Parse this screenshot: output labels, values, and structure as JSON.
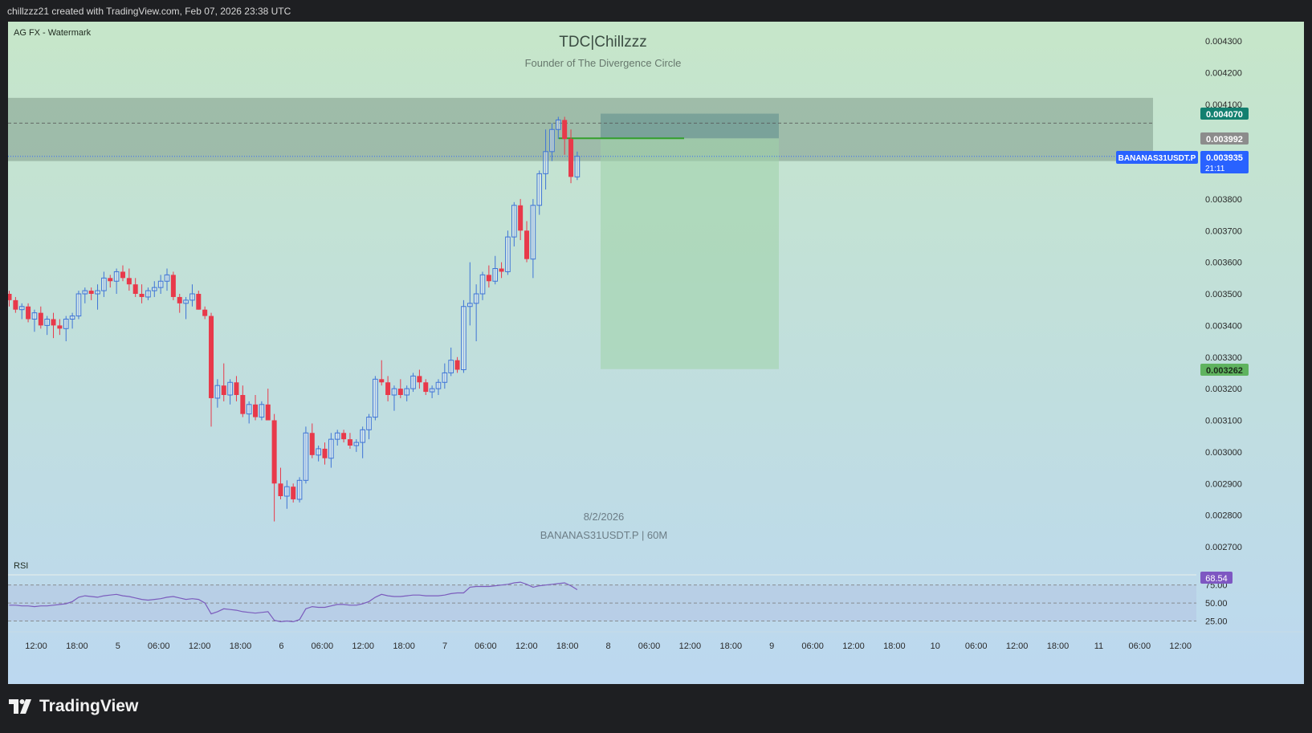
{
  "header": {
    "created_text": "chillzzz21 created with TradingView.com, Feb 07, 2026 23:38 UTC"
  },
  "watermark_label": "AG FX - Watermark",
  "title": "TDC|Chillzzz",
  "subtitle": "Founder of The Divergence Circle",
  "date_label": "8/2/2026",
  "symbol_label": "BANANAS31USDT.P | 60M",
  "footer_brand": "TradingView",
  "colors": {
    "up": "#3e74d6",
    "down": "#e8394a",
    "bg_top": "#c6e6c9",
    "bg_bottom": "#bcd8f0",
    "zone": "#7f9a8a",
    "stop": "#5d8c8c",
    "target": "#9fd2a8",
    "rsi_line": "#7b5cbd"
  },
  "price_tags": {
    "stop": "0.004070",
    "entry": "0.003992",
    "current_symbol": "BANANAS31USDT.P",
    "current": "0.003935",
    "countdown": "21:11",
    "target": "0.003262",
    "rsi": "68.54"
  },
  "price_axis": {
    "labels": [
      "0.004300",
      "0.004200",
      "0.004100",
      "0.003800",
      "0.003700",
      "0.003600",
      "0.003500",
      "0.003400",
      "0.003300",
      "0.003200",
      "0.003100",
      "0.003000",
      "0.002900",
      "0.002800",
      "0.002700"
    ]
  },
  "rsi_panel": {
    "label": "RSI",
    "levels": [
      "75.00",
      "50.00",
      "25.00"
    ]
  },
  "time_axis": {
    "labels": [
      "12:00",
      "18:00",
      "5",
      "06:00",
      "12:00",
      "18:00",
      "6",
      "06:00",
      "12:00",
      "18:00",
      "7",
      "06:00",
      "12:00",
      "18:00",
      "8",
      "06:00",
      "12:00",
      "18:00",
      "9",
      "06:00",
      "12:00",
      "18:00",
      "10",
      "06:00",
      "12:00",
      "18:00",
      "11",
      "06:00",
      "12:00"
    ]
  },
  "chart_data": {
    "type": "candlestick",
    "interval": "60M",
    "ylim": [
      0.00265,
      0.00441
    ],
    "candles": [
      {
        "o": 0.0035,
        "h": 0.00351,
        "l": 0.00346,
        "c": 0.00348
      },
      {
        "o": 0.00348,
        "h": 0.00349,
        "l": 0.00344,
        "c": 0.00345
      },
      {
        "o": 0.00345,
        "h": 0.00347,
        "l": 0.00342,
        "c": 0.00346
      },
      {
        "o": 0.00346,
        "h": 0.00347,
        "l": 0.00341,
        "c": 0.00342
      },
      {
        "o": 0.00342,
        "h": 0.00345,
        "l": 0.00338,
        "c": 0.00344
      },
      {
        "o": 0.00344,
        "h": 0.00346,
        "l": 0.00339,
        "c": 0.0034
      },
      {
        "o": 0.0034,
        "h": 0.00343,
        "l": 0.00337,
        "c": 0.00342
      },
      {
        "o": 0.00342,
        "h": 0.00344,
        "l": 0.00336,
        "c": 0.0034
      },
      {
        "o": 0.0034,
        "h": 0.00342,
        "l": 0.00337,
        "c": 0.00339
      },
      {
        "o": 0.00339,
        "h": 0.00343,
        "l": 0.00335,
        "c": 0.00342
      },
      {
        "o": 0.00342,
        "h": 0.00344,
        "l": 0.00339,
        "c": 0.00343
      },
      {
        "o": 0.00343,
        "h": 0.00351,
        "l": 0.00342,
        "c": 0.0035
      },
      {
        "o": 0.0035,
        "h": 0.00352,
        "l": 0.00347,
        "c": 0.00351
      },
      {
        "o": 0.00351,
        "h": 0.00352,
        "l": 0.00348,
        "c": 0.0035
      },
      {
        "o": 0.0035,
        "h": 0.00353,
        "l": 0.00345,
        "c": 0.00351
      },
      {
        "o": 0.00351,
        "h": 0.00357,
        "l": 0.00349,
        "c": 0.00355
      },
      {
        "o": 0.00355,
        "h": 0.00356,
        "l": 0.00352,
        "c": 0.00354
      },
      {
        "o": 0.00354,
        "h": 0.00358,
        "l": 0.0035,
        "c": 0.00357
      },
      {
        "o": 0.00357,
        "h": 0.00359,
        "l": 0.00354,
        "c": 0.00355
      },
      {
        "o": 0.00355,
        "h": 0.00358,
        "l": 0.00351,
        "c": 0.00353
      },
      {
        "o": 0.00353,
        "h": 0.00355,
        "l": 0.00349,
        "c": 0.0035
      },
      {
        "o": 0.0035,
        "h": 0.00353,
        "l": 0.00347,
        "c": 0.00349
      },
      {
        "o": 0.00349,
        "h": 0.00352,
        "l": 0.00348,
        "c": 0.00351
      },
      {
        "o": 0.00351,
        "h": 0.00354,
        "l": 0.00349,
        "c": 0.00352
      },
      {
        "o": 0.00352,
        "h": 0.00356,
        "l": 0.0035,
        "c": 0.00354
      },
      {
        "o": 0.00354,
        "h": 0.00358,
        "l": 0.00351,
        "c": 0.00356
      },
      {
        "o": 0.00356,
        "h": 0.00357,
        "l": 0.00348,
        "c": 0.00349
      },
      {
        "o": 0.00349,
        "h": 0.0035,
        "l": 0.00344,
        "c": 0.00347
      },
      {
        "o": 0.00347,
        "h": 0.00349,
        "l": 0.00342,
        "c": 0.00348
      },
      {
        "o": 0.00348,
        "h": 0.00353,
        "l": 0.00346,
        "c": 0.0035
      },
      {
        "o": 0.0035,
        "h": 0.00351,
        "l": 0.00345,
        "c": 0.00345
      },
      {
        "o": 0.00345,
        "h": 0.00346,
        "l": 0.00342,
        "c": 0.00343
      },
      {
        "o": 0.00343,
        "h": 0.00344,
        "l": 0.00308,
        "c": 0.00317
      },
      {
        "o": 0.00317,
        "h": 0.00323,
        "l": 0.00314,
        "c": 0.00321
      },
      {
        "o": 0.00321,
        "h": 0.00328,
        "l": 0.00316,
        "c": 0.00318
      },
      {
        "o": 0.00318,
        "h": 0.00323,
        "l": 0.00315,
        "c": 0.00322
      },
      {
        "o": 0.00322,
        "h": 0.00324,
        "l": 0.00316,
        "c": 0.00318
      },
      {
        "o": 0.00318,
        "h": 0.00321,
        "l": 0.00311,
        "c": 0.00312
      },
      {
        "o": 0.00312,
        "h": 0.00316,
        "l": 0.00309,
        "c": 0.00315
      },
      {
        "o": 0.00315,
        "h": 0.00318,
        "l": 0.0031,
        "c": 0.00311
      },
      {
        "o": 0.00311,
        "h": 0.00316,
        "l": 0.0031,
        "c": 0.00315
      },
      {
        "o": 0.00315,
        "h": 0.0032,
        "l": 0.0031,
        "c": 0.0031
      },
      {
        "o": 0.0031,
        "h": 0.00312,
        "l": 0.00278,
        "c": 0.0029
      },
      {
        "o": 0.0029,
        "h": 0.00295,
        "l": 0.00285,
        "c": 0.00286
      },
      {
        "o": 0.00286,
        "h": 0.00291,
        "l": 0.00282,
        "c": 0.00289
      },
      {
        "o": 0.00289,
        "h": 0.0029,
        "l": 0.00284,
        "c": 0.00285
      },
      {
        "o": 0.00285,
        "h": 0.00292,
        "l": 0.00284,
        "c": 0.00291
      },
      {
        "o": 0.00291,
        "h": 0.00308,
        "l": 0.0029,
        "c": 0.00306
      },
      {
        "o": 0.00306,
        "h": 0.00309,
        "l": 0.00298,
        "c": 0.00299
      },
      {
        "o": 0.00299,
        "h": 0.00302,
        "l": 0.00297,
        "c": 0.00301
      },
      {
        "o": 0.00301,
        "h": 0.00303,
        "l": 0.00296,
        "c": 0.00298
      },
      {
        "o": 0.00298,
        "h": 0.00306,
        "l": 0.00295,
        "c": 0.00304
      },
      {
        "o": 0.00304,
        "h": 0.00307,
        "l": 0.00302,
        "c": 0.00306
      },
      {
        "o": 0.00306,
        "h": 0.00307,
        "l": 0.00303,
        "c": 0.00304
      },
      {
        "o": 0.00304,
        "h": 0.00306,
        "l": 0.00301,
        "c": 0.00302
      },
      {
        "o": 0.00302,
        "h": 0.00304,
        "l": 0.003,
        "c": 0.00303
      },
      {
        "o": 0.00303,
        "h": 0.00308,
        "l": 0.00298,
        "c": 0.00307
      },
      {
        "o": 0.00307,
        "h": 0.00312,
        "l": 0.00304,
        "c": 0.00311
      },
      {
        "o": 0.00311,
        "h": 0.00324,
        "l": 0.0031,
        "c": 0.00323
      },
      {
        "o": 0.00323,
        "h": 0.00329,
        "l": 0.00321,
        "c": 0.00322
      },
      {
        "o": 0.00322,
        "h": 0.00324,
        "l": 0.00316,
        "c": 0.00318
      },
      {
        "o": 0.00318,
        "h": 0.00321,
        "l": 0.00313,
        "c": 0.0032
      },
      {
        "o": 0.0032,
        "h": 0.00323,
        "l": 0.00317,
        "c": 0.00318
      },
      {
        "o": 0.00318,
        "h": 0.00321,
        "l": 0.00316,
        "c": 0.0032
      },
      {
        "o": 0.0032,
        "h": 0.00325,
        "l": 0.00319,
        "c": 0.00324
      },
      {
        "o": 0.00324,
        "h": 0.00326,
        "l": 0.0032,
        "c": 0.00322
      },
      {
        "o": 0.00322,
        "h": 0.00323,
        "l": 0.00318,
        "c": 0.00319
      },
      {
        "o": 0.00319,
        "h": 0.00321,
        "l": 0.00317,
        "c": 0.0032
      },
      {
        "o": 0.0032,
        "h": 0.00323,
        "l": 0.00318,
        "c": 0.00322
      },
      {
        "o": 0.00322,
        "h": 0.00328,
        "l": 0.0032,
        "c": 0.00325
      },
      {
        "o": 0.00325,
        "h": 0.00333,
        "l": 0.00324,
        "c": 0.00329
      },
      {
        "o": 0.00329,
        "h": 0.0033,
        "l": 0.00325,
        "c": 0.00326
      },
      {
        "o": 0.00326,
        "h": 0.00348,
        "l": 0.00325,
        "c": 0.00346
      },
      {
        "o": 0.00346,
        "h": 0.0036,
        "l": 0.0034,
        "c": 0.00347
      },
      {
        "o": 0.00347,
        "h": 0.00353,
        "l": 0.00335,
        "c": 0.0035
      },
      {
        "o": 0.0035,
        "h": 0.00357,
        "l": 0.00348,
        "c": 0.00356
      },
      {
        "o": 0.00356,
        "h": 0.00359,
        "l": 0.00352,
        "c": 0.00354
      },
      {
        "o": 0.00354,
        "h": 0.00362,
        "l": 0.00353,
        "c": 0.00358
      },
      {
        "o": 0.00358,
        "h": 0.0036,
        "l": 0.00355,
        "c": 0.00357
      },
      {
        "o": 0.00357,
        "h": 0.0037,
        "l": 0.00356,
        "c": 0.00368
      },
      {
        "o": 0.00368,
        "h": 0.00379,
        "l": 0.00365,
        "c": 0.00378
      },
      {
        "o": 0.00378,
        "h": 0.0038,
        "l": 0.00367,
        "c": 0.0037
      },
      {
        "o": 0.0037,
        "h": 0.00373,
        "l": 0.0036,
        "c": 0.00361
      },
      {
        "o": 0.00361,
        "h": 0.0038,
        "l": 0.00355,
        "c": 0.00378
      },
      {
        "o": 0.00378,
        "h": 0.00389,
        "l": 0.00375,
        "c": 0.00388
      },
      {
        "o": 0.00388,
        "h": 0.00402,
        "l": 0.00383,
        "c": 0.00395
      },
      {
        "o": 0.00395,
        "h": 0.00404,
        "l": 0.00392,
        "c": 0.00402
      },
      {
        "o": 0.00402,
        "h": 0.00406,
        "l": 0.00399,
        "c": 0.00405
      },
      {
        "o": 0.00405,
        "h": 0.00406,
        "l": 0.00394,
        "c": 0.00399
      },
      {
        "o": 0.00399,
        "h": 0.00402,
        "l": 0.00385,
        "c": 0.00387
      },
      {
        "o": 0.00387,
        "h": 0.00395,
        "l": 0.00386,
        "c": 0.003935
      }
    ],
    "zones": {
      "resistance": [
        0.00392,
        0.00412
      ],
      "stop_box": [
        0.003992,
        0.00407
      ],
      "target_box": [
        0.003262,
        0.003992
      ]
    },
    "levels": {
      "dashed_top": 0.00404,
      "current": 0.003935,
      "entry": 0.003992
    },
    "rsi": {
      "ylim": [
        10,
        88
      ],
      "levels": [
        75,
        50,
        25
      ],
      "values": [
        47,
        47,
        46,
        46,
        45,
        46,
        46,
        47,
        48,
        49,
        52,
        58,
        60,
        59,
        58,
        60,
        61,
        62,
        60,
        59,
        57,
        55,
        54,
        55,
        56,
        58,
        59,
        57,
        55,
        56,
        55,
        50,
        35,
        38,
        42,
        41,
        40,
        38,
        37,
        36,
        37,
        38,
        26,
        24,
        25,
        24,
        27,
        42,
        45,
        44,
        44,
        46,
        48,
        48,
        47,
        47,
        49,
        52,
        58,
        62,
        60,
        59,
        59,
        60,
        61,
        61,
        60,
        60,
        60,
        61,
        63,
        64,
        64,
        72,
        73,
        73,
        73,
        74,
        75,
        76,
        78,
        79,
        76,
        72,
        74,
        75,
        76,
        77,
        78,
        74,
        68.54
      ]
    }
  }
}
